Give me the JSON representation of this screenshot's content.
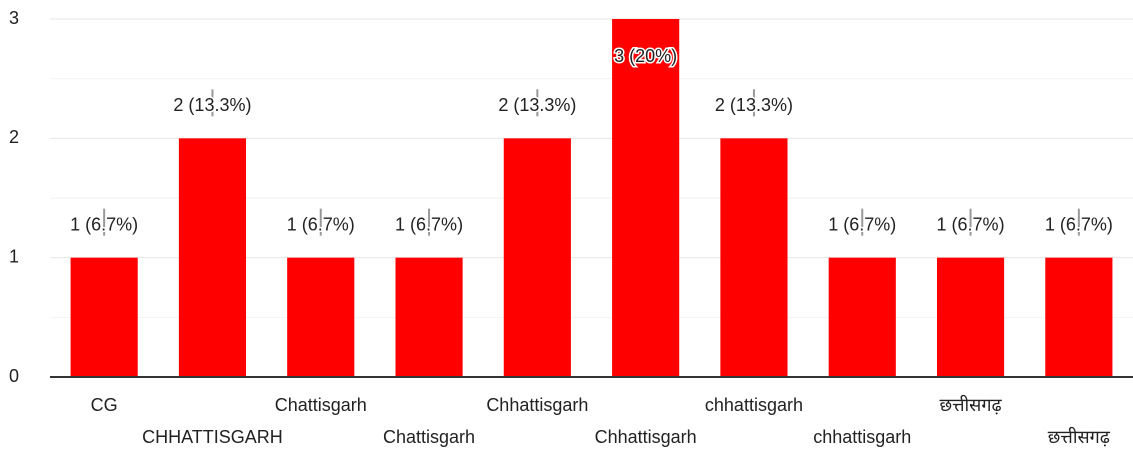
{
  "chart_data": {
    "type": "bar",
    "categories": [
      "CG",
      "CHHATTISGARH",
      "Chattisgarh",
      "Chattisgarh",
      "Chhattisgarh",
      "Chhattisgarh",
      "chhattisgarh",
      "chhattisgarh",
      "छत्तीसगढ़",
      "छत्तीसगढ़"
    ],
    "values": [
      1,
      2,
      1,
      1,
      2,
      3,
      2,
      1,
      1,
      1
    ],
    "value_labels": [
      "1 (6.7%)",
      "2 (13.3%)",
      "1 (6.7%)",
      "1 (6.7%)",
      "2 (13.3%)",
      "3 (20%)",
      "2 (13.3%)",
      "1 (6.7%)",
      "1 (6.7%)",
      "1 (6.7%)"
    ],
    "color": "#ff0000",
    "ylim": [
      0,
      3
    ],
    "yticks": [
      0,
      1,
      2,
      3
    ],
    "grid": true
  }
}
